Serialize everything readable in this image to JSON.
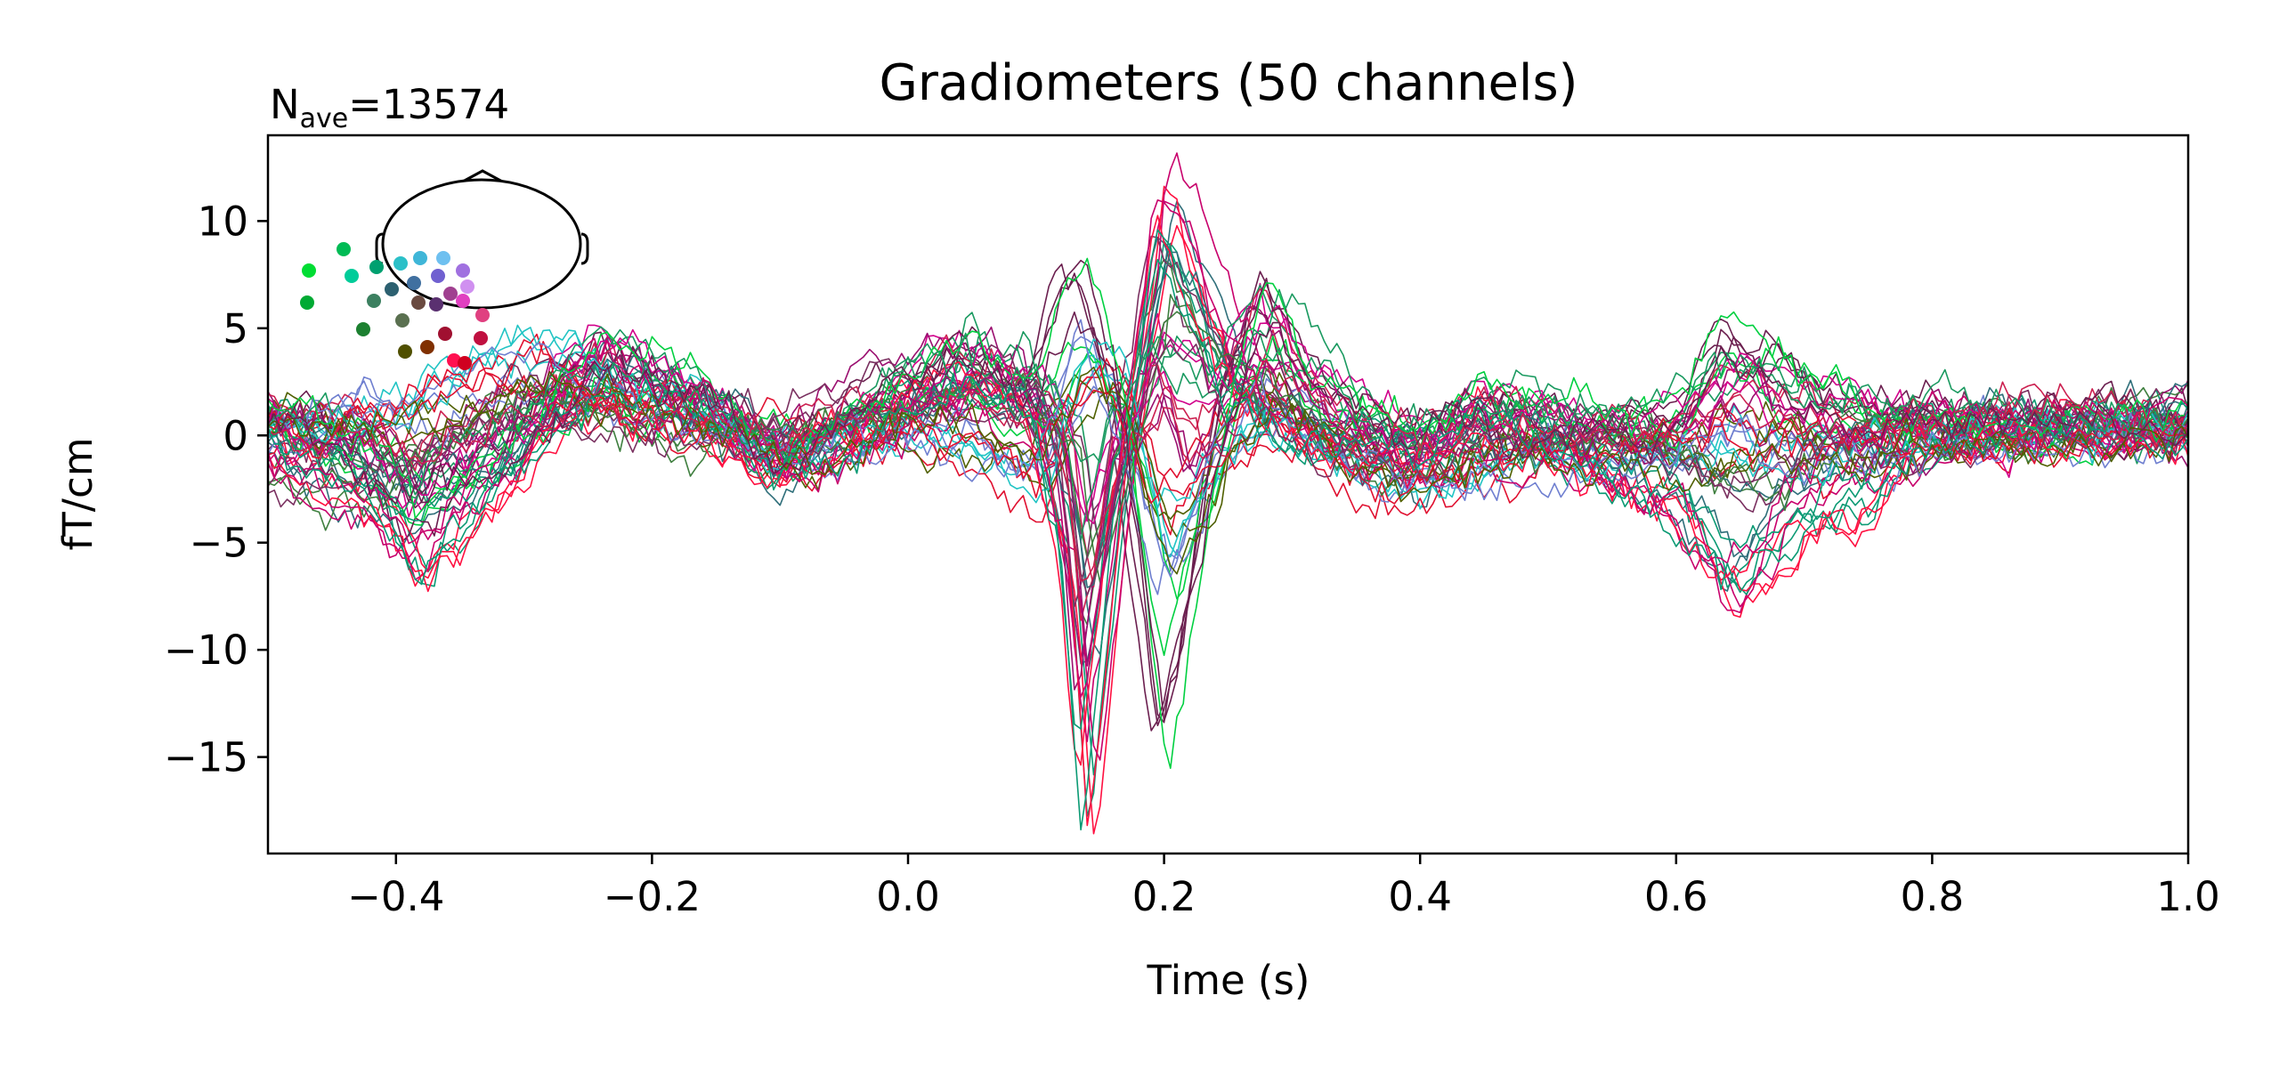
{
  "chart_data": {
    "type": "line",
    "title": "Gradiometers (50 channels)",
    "nave_prefix": "N",
    "nave_subscript": "ave",
    "nave_value": "=13574",
    "xlabel": "Time (s)",
    "ylabel": "fT/cm",
    "xlim": [
      -0.5,
      1.0
    ],
    "ylim": [
      -19.5,
      14.0
    ],
    "xticks": [
      -0.4,
      -0.2,
      0.0,
      0.2,
      0.4,
      0.6,
      0.8,
      1.0
    ],
    "xtick_labels": [
      "−0.4",
      "−0.2",
      "0.0",
      "0.2",
      "0.4",
      "0.6",
      "0.8",
      "1.0"
    ],
    "yticks": [
      10,
      5,
      0,
      -5,
      -10,
      -15
    ],
    "ytick_labels": [
      "10",
      "5",
      "0",
      "−5",
      "−10",
      "−15"
    ],
    "grid": false,
    "legend": "none; channel colors shown by sensor-location inset at top-left",
    "n_channels": 50,
    "sampling_step_s": 0.005,
    "features": {
      "t": [
        -0.5,
        -0.42,
        -0.38,
        -0.3,
        -0.24,
        -0.15,
        -0.1,
        0.0,
        0.05,
        0.1,
        0.125,
        0.14,
        0.165,
        0.2,
        0.225,
        0.25,
        0.28,
        0.32,
        0.36,
        0.4,
        0.45,
        0.5,
        0.55,
        0.6,
        0.64,
        0.66,
        0.7,
        0.75,
        0.8,
        0.9,
        1.0
      ],
      "ch1": [
        0.5,
        -2.5,
        -6.0,
        -1.0,
        2.0,
        0.5,
        -1.5,
        1.5,
        3.0,
        1.0,
        -6.0,
        -17.5,
        -4.0,
        10.0,
        6.0,
        2.5,
        1.0,
        0.0,
        -0.5,
        -1.0,
        1.0,
        0.0,
        -2.0,
        -3.0,
        -6.5,
        -6.0,
        -4.0,
        -2.5,
        0.0,
        0.5,
        0.5
      ],
      "ch2": [
        1.0,
        -1.0,
        -4.0,
        0.5,
        4.0,
        2.0,
        -1.0,
        2.5,
        4.0,
        2.0,
        6.5,
        7.0,
        2.0,
        -14.5,
        -7.0,
        2.0,
        6.5,
        2.0,
        1.0,
        0.0,
        1.5,
        1.0,
        0.5,
        1.0,
        5.0,
        4.5,
        2.5,
        1.0,
        1.0,
        0.5,
        0.5
      ],
      "ch3": [
        -1.0,
        -3.5,
        -4.5,
        -0.5,
        3.5,
        1.0,
        -2.0,
        0.5,
        2.0,
        1.0,
        -5.0,
        -14.0,
        -3.0,
        12.0,
        9.0,
        5.0,
        2.0,
        0.0,
        -1.0,
        -2.0,
        -1.0,
        -1.0,
        -2.0,
        -3.5,
        -7.0,
        -5.5,
        -2.5,
        -1.0,
        0.5,
        0.5,
        1.0
      ],
      "ch4": [
        0.0,
        1.0,
        2.0,
        4.5,
        3.0,
        1.0,
        -1.0,
        0.0,
        -1.0,
        -3.0,
        2.0,
        4.0,
        3.0,
        -5.0,
        -3.0,
        -1.0,
        0.0,
        -1.0,
        -2.0,
        -3.0,
        -2.0,
        -1.0,
        -1.0,
        -1.0,
        -0.5,
        -1.0,
        -1.0,
        -0.5,
        0.0,
        0.0,
        0.5
      ],
      "ch5": [
        1.0,
        -1.0,
        -3.5,
        1.0,
        5.5,
        2.0,
        -2.0,
        3.0,
        4.5,
        3.0,
        1.0,
        -5.0,
        0.0,
        5.0,
        3.5,
        3.0,
        7.5,
        3.5,
        1.0,
        0.0,
        2.0,
        1.5,
        1.0,
        0.5,
        3.0,
        3.0,
        2.0,
        1.5,
        1.0,
        0.5,
        0.5
      ],
      "ch6": [
        -2.0,
        -2.0,
        -1.0,
        2.0,
        1.0,
        0.0,
        0.5,
        2.0,
        3.0,
        2.0,
        0.0,
        -8.0,
        -1.0,
        8.0,
        6.0,
        3.0,
        2.0,
        0.0,
        -1.0,
        -1.5,
        0.0,
        0.0,
        0.0,
        -1.0,
        -2.0,
        -2.0,
        -1.0,
        0.0,
        0.5,
        1.0,
        1.0
      ],
      "ch7": [
        1.5,
        0.0,
        -1.5,
        2.0,
        3.0,
        1.5,
        0.0,
        2.5,
        3.5,
        2.0,
        -1.0,
        -12.0,
        -2.0,
        3.0,
        -1.0,
        1.0,
        5.5,
        2.0,
        0.0,
        -0.5,
        0.5,
        0.5,
        0.0,
        0.0,
        2.5,
        2.5,
        1.0,
        0.5,
        0.5,
        0.5,
        0.5
      ],
      "ch8": [
        0.5,
        2.0,
        1.5,
        3.5,
        3.0,
        1.0,
        -1.0,
        0.5,
        0.0,
        -2.0,
        3.0,
        5.0,
        2.0,
        -8.0,
        -5.0,
        0.0,
        3.0,
        0.5,
        -1.0,
        -2.5,
        -1.5,
        -0.5,
        -1.0,
        -1.5,
        0.5,
        0.0,
        -1.0,
        -1.0,
        0.0,
        0.0,
        0.5
      ]
    },
    "color_cycle": [
      "#0b9a74",
      "#6b1f4f",
      "#2f6f7a",
      "#21c4c4",
      "#d1008a",
      "#3f7f3f",
      "#9b1070",
      "#6f7fd0",
      "#ff1040",
      "#00d040",
      "#c8006c",
      "#e01030",
      "#1a9a60",
      "#7a3060",
      "#cc2050",
      "#506000"
    ],
    "sensor_inset": {
      "head_outline_color": "#000000",
      "sensor_colors": [
        "#00dd33",
        "#00bb55",
        "#00aa33",
        "#00cc99",
        "#00a070",
        "#2bc0c8",
        "#3fb6d8",
        "#6ec0f0",
        "#1c8030",
        "#3c8060",
        "#2c6070",
        "#4070a0",
        "#7060d0",
        "#a070e0",
        "#d090f0",
        "#5a7050",
        "#6a4a40",
        "#5a3070",
        "#a04090",
        "#e040c0",
        "#e04080",
        "#505000",
        "#803000",
        "#a01030",
        "#c01040",
        "#ff1050",
        "#d00020"
      ]
    }
  }
}
